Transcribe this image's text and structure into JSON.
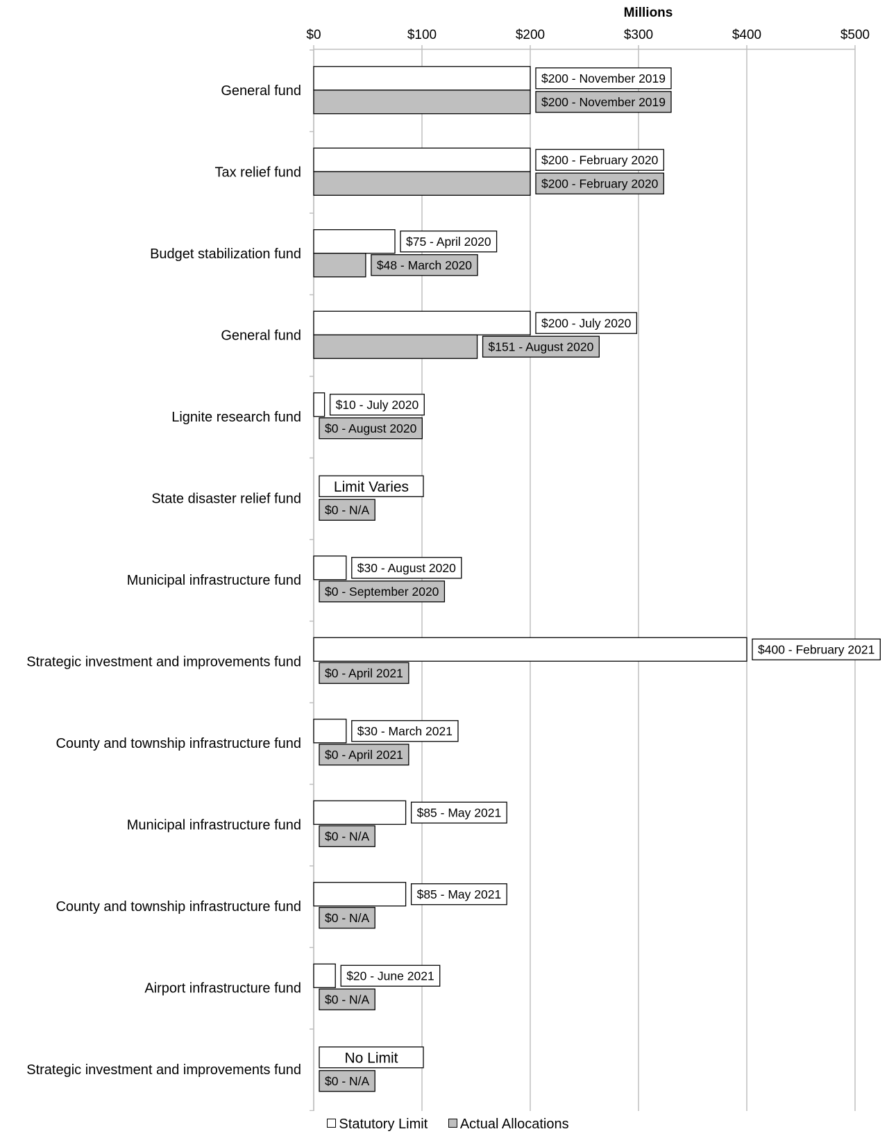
{
  "chart_data": {
    "type": "bar",
    "orientation": "horizontal",
    "title": "",
    "xlabel": "Millions",
    "ylabel": "",
    "xlim": [
      0,
      500
    ],
    "x_ticks": [
      0,
      100,
      200,
      300,
      400,
      500
    ],
    "x_tick_labels": [
      "$0",
      "$100",
      "$200",
      "$300",
      "$400",
      "$500"
    ],
    "grid": true,
    "legend_position": "bottom",
    "colors": {
      "statutory": "#ffffff",
      "actual": "#bfbfbf",
      "outline": "#000000",
      "grid": "#bfbfbf"
    },
    "categories": [
      "General fund",
      "Tax relief fund",
      "Budget stabilization fund",
      "General fund",
      "Lignite research fund",
      "State disaster relief fund",
      "Municipal infrastructure fund",
      "Strategic investment and improvements fund",
      "County and township infrastructure fund",
      "Municipal infrastructure fund",
      "County and township infrastructure fund",
      "Airport infrastructure fund",
      "Strategic investment and improvements fund"
    ],
    "series": [
      {
        "name": "Statutory Limit",
        "values": [
          200,
          200,
          75,
          200,
          10,
          null,
          30,
          400,
          30,
          85,
          85,
          20,
          null
        ],
        "labels": [
          "$200 - November 2019",
          "$200 - February 2020",
          "$75 - April 2020",
          "$200 - July 2020",
          "$10 - July 2020",
          "Limit Varies",
          "$30 - August 2020",
          "$400 - February 2021",
          "$30 - March 2021",
          "$85 - May 2021",
          "$85 - May 2021",
          "$20 - June 2021",
          "No Limit"
        ]
      },
      {
        "name": "Actual Allocations",
        "values": [
          200,
          200,
          48,
          151,
          0,
          0,
          0,
          0,
          0,
          0,
          0,
          0,
          0
        ],
        "labels": [
          "$200 - November 2019",
          "$200 - February 2020",
          "$48 - March 2020",
          "$151 - August 2020",
          "$0 - August 2020",
          "$0 - N/A",
          "$0 - September 2020",
          "$0 - April 2021",
          "$0 - April 2021",
          "$0 - N/A",
          "$0 - N/A",
          "$0 - N/A",
          "$0 - N/A"
        ]
      }
    ]
  }
}
